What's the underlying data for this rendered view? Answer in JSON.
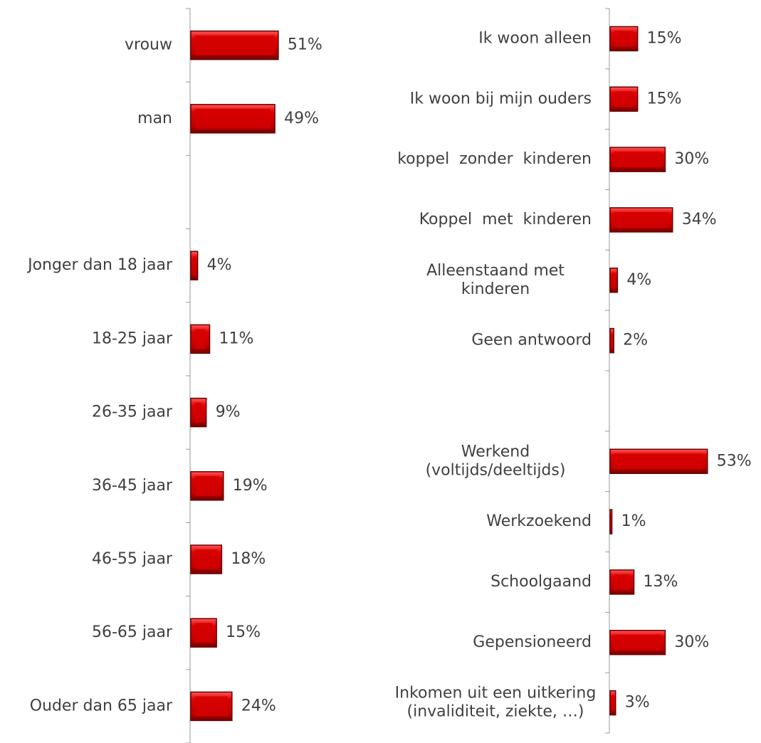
{
  "chart_data": [
    {
      "type": "bar",
      "orientation": "horizontal",
      "color": "#d40000",
      "categories": [
        "vrouw",
        "man",
        null,
        "Jonger dan 18 jaar",
        "18-25 jaar",
        "26-35 jaar",
        "36-45 jaar",
        "46-55 jaar",
        "56-65 jaar",
        "Ouder dan 65 jaar"
      ],
      "values": [
        51,
        49,
        null,
        4,
        11,
        9,
        19,
        18,
        15,
        24
      ],
      "value_labels": [
        "51%",
        "49%",
        null,
        "4%",
        "11%",
        "9%",
        "19%",
        "18%",
        "15%",
        "24%"
      ]
    },
    {
      "type": "bar",
      "orientation": "horizontal",
      "color": "#d40000",
      "categories": [
        "Ik woon alleen",
        "Ik woon bij mijn ouders",
        "koppel  zonder  kinderen",
        "Koppel  met  kinderen",
        "Alleenstaand met\nkinderen",
        "Geen antwoord",
        null,
        "Werkend\n(voltijds/deeltijds)",
        "Werkzoekend",
        "Schoolgaand",
        "Gepensioneerd",
        "Inkomen uit een uitkering\n(invaliditeit, ziekte, …)"
      ],
      "values": [
        15,
        15,
        30,
        34,
        4,
        2,
        null,
        53,
        1,
        13,
        30,
        3
      ],
      "value_labels": [
        "15%",
        "15%",
        "30%",
        "34%",
        "4%",
        "2%",
        null,
        "53%",
        "1%",
        "13%",
        "30%",
        "3%"
      ]
    }
  ]
}
